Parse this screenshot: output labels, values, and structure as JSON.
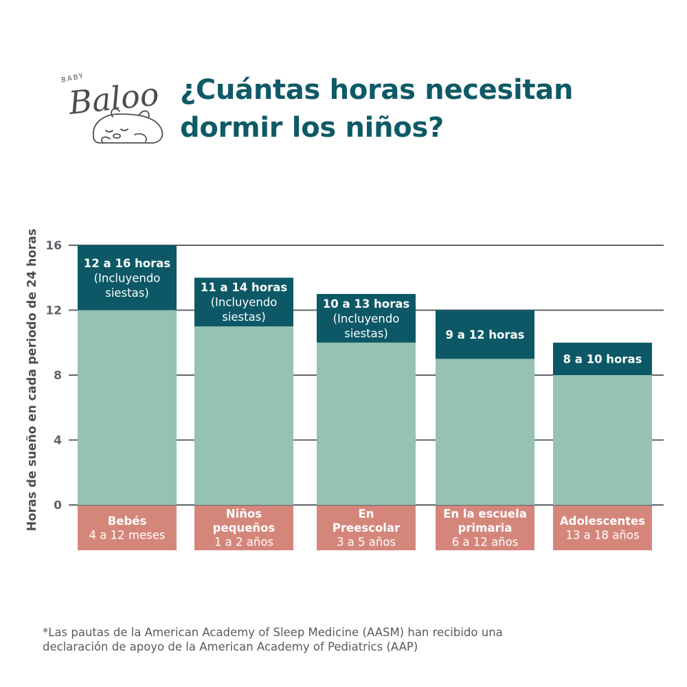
{
  "brand": {
    "small_text": "BABY",
    "name": "Baloo",
    "mascot": "sleeping-bear-icon"
  },
  "title": {
    "line1": "¿Cuántas horas necesitan",
    "line2": "dormir los niños?"
  },
  "colors": {
    "title": "#0e5a66",
    "range_box": "#0d5866",
    "bar_base": "#95c2b1",
    "category_box": "#d5867b",
    "gridline": "#5f6469",
    "axis_text": "#5f6469"
  },
  "chart_data": {
    "type": "bar",
    "ylabel": "Horas de sueño en cada periodo de 24 horas",
    "ylim": [
      0,
      16
    ],
    "yticks": [
      0,
      4,
      8,
      12,
      16
    ],
    "grid": true,
    "categories": [
      {
        "name": [
          "Bebés"
        ],
        "age": "4 a 12 meses"
      },
      {
        "name": [
          "Niños",
          "pequeños"
        ],
        "age": "1 a 2 años"
      },
      {
        "name": [
          "En",
          "Preescolar"
        ],
        "age": "3 a 5 años"
      },
      {
        "name": [
          "En la escuela",
          "primaria"
        ],
        "age": "6 a 12 años"
      },
      {
        "name": [
          "Adolescentes"
        ],
        "age": "13 a 18 años"
      }
    ],
    "min_hours": [
      12,
      11,
      10,
      9,
      8
    ],
    "max_hours": [
      16,
      14,
      13,
      12,
      10
    ],
    "range_labels": [
      {
        "main": "12 a 16 horas",
        "note": [
          "(Incluyendo",
          "siestas)"
        ]
      },
      {
        "main": "11 a 14 horas",
        "note": [
          "(Incluyendo",
          "siestas)"
        ]
      },
      {
        "main": "10 a 13 horas",
        "note": [
          "(Incluyendo",
          "siestas)"
        ]
      },
      {
        "main": "9 a 12 horas",
        "note": []
      },
      {
        "main": "8 a 10 horas",
        "note": []
      }
    ]
  },
  "footnote": {
    "line1": "*Las pautas de la American Academy of Sleep Medicine (AASM)  han recibido una",
    "line2": "declaración de apoyo de la American Academy of Pediatrics (AAP)"
  }
}
